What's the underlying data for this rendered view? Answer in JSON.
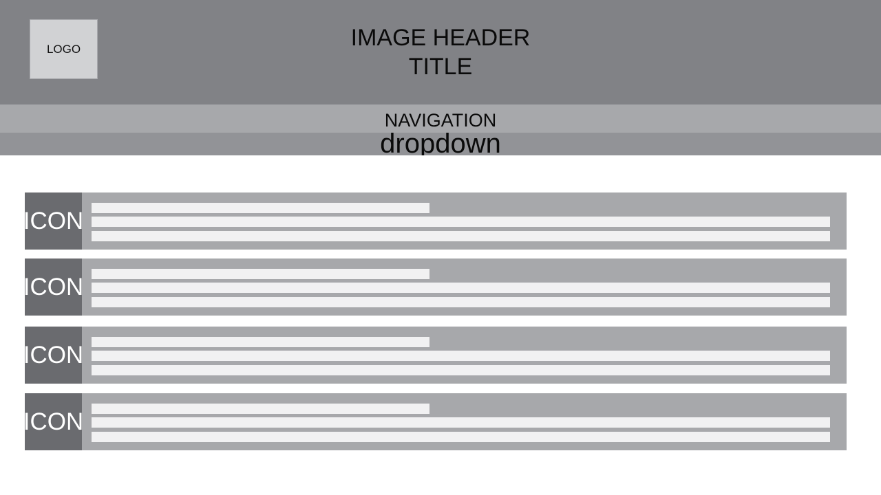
{
  "header": {
    "logo_label": "LOGO",
    "title": "IMAGE HEADER\nTITLE",
    "background_color": "#818286"
  },
  "navigation": {
    "label": "NAVIGATION",
    "dropdown_label": "dropdown"
  },
  "list": {
    "items": [
      {
        "icon_label": "ICON"
      },
      {
        "icon_label": "ICON"
      },
      {
        "icon_label": "ICON"
      },
      {
        "icon_label": "ICON"
      }
    ]
  },
  "colors": {
    "nav_bg": "#a7a8ab",
    "dropdown_bg": "#929397",
    "icon_bg": "#6a6b6f",
    "text_placeholder": "#f1f1f2"
  }
}
